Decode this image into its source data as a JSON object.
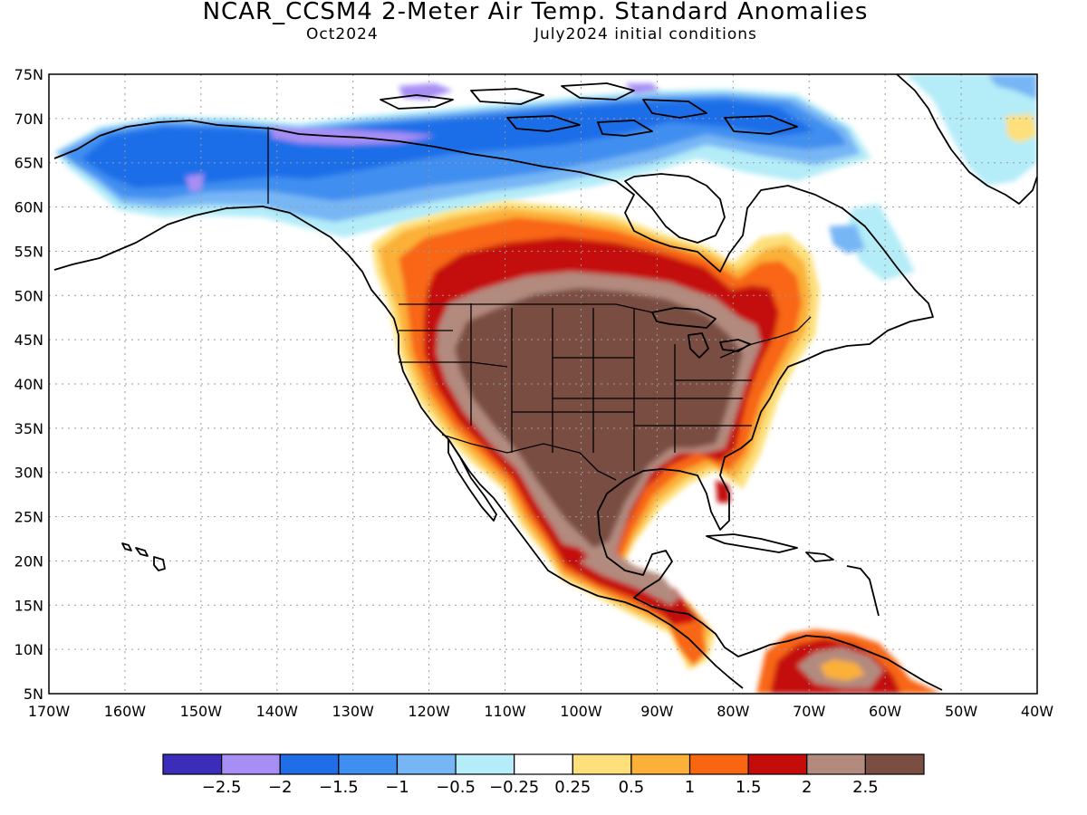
{
  "header": {
    "title": "NCAR_CCSM4 2-Meter Air Temp. Standard Anomalies",
    "forecast_month": "Oct2024",
    "init": "July2024 initial conditions"
  },
  "map": {
    "lat_labels": [
      "75N",
      "70N",
      "65N",
      "60N",
      "55N",
      "50N",
      "45N",
      "40N",
      "35N",
      "30N",
      "25N",
      "20N",
      "15N",
      "10N",
      "5N"
    ],
    "lon_labels": [
      "170W",
      "160W",
      "150W",
      "140W",
      "130W",
      "120W",
      "110W",
      "100W",
      "90W",
      "80W",
      "70W",
      "60W",
      "50W",
      "40W"
    ],
    "lat_range": [
      5,
      75
    ],
    "lon_range": [
      -170,
      -40
    ],
    "grid": true,
    "grid_style": "dotted"
  },
  "colorbar": {
    "colors": [
      "#3b2dba",
      "#a78ef5",
      "#1f6ee8",
      "#3f8ff0",
      "#77b6f5",
      "#b4ecf8",
      "#ffffff",
      "#fde07a",
      "#fbb039",
      "#f86612",
      "#c40d0b",
      "#b38a7e",
      "#7a4e43"
    ],
    "labels": [
      "-2.5",
      "-2",
      "-1.5",
      "-1",
      "-0.5",
      "-0.25",
      "0.25",
      "0.5",
      "1",
      "1.5",
      "2",
      "2.5"
    ]
  }
}
